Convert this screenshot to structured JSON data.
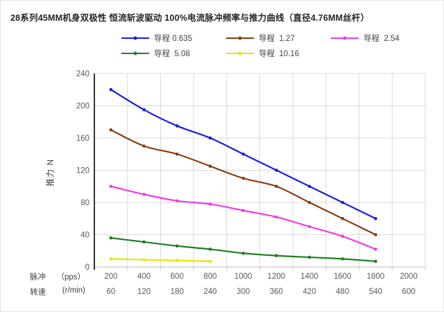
{
  "title": "28系列45MM机身双极性 恒流斩波驱动 100%电流脉冲频率与推力曲线（直径4.76MM丝杆）",
  "chart_data": {
    "type": "line",
    "title": "28系列45MM机身双极性 恒流斩波驱动 100%电流脉冲频率与推力曲线（直径4.76MM丝杆）",
    "ylabel": "推力 N",
    "ylim": [
      0,
      240
    ],
    "yticks": [
      0,
      40,
      80,
      120,
      160,
      200,
      240
    ],
    "grid": true,
    "legend_position": "top",
    "x_axis_rows": [
      {
        "name": "脉冲",
        "unit": "（pps）",
        "categories": [
          200,
          400,
          600,
          800,
          1000,
          1200,
          1400,
          1600,
          1800,
          2000
        ]
      },
      {
        "name": "转速",
        "unit": "(r/min)",
        "categories": [
          60,
          120,
          180,
          240,
          300,
          360,
          420,
          480,
          540,
          600
        ]
      }
    ],
    "series": [
      {
        "name": "导程 0.635",
        "color": "#1b1be6",
        "values": [
          220,
          195,
          175,
          160,
          140,
          120,
          100,
          80,
          60
        ]
      },
      {
        "name": "导程  1.27",
        "color": "#8b3d0e",
        "values": [
          170,
          150,
          140,
          125,
          110,
          100,
          80,
          60,
          40
        ]
      },
      {
        "name": "导程  2.54",
        "color": "#f23be8",
        "values": [
          100,
          90,
          82,
          78,
          70,
          62,
          50,
          38,
          22
        ]
      },
      {
        "name": "导程  5.08",
        "color": "#1f7d1f",
        "values": [
          36,
          31,
          26,
          22,
          17,
          14,
          12,
          10,
          7
        ]
      },
      {
        "name": "导程  10.16",
        "color": "#ede400",
        "values": [
          10,
          9,
          8,
          7
        ]
      }
    ],
    "colors": {
      "gridline": "#d9d9d9",
      "y_axis": "#000000",
      "x_axis": "#bfbfbf",
      "tick_label": "#595959",
      "title_text": "#262626"
    }
  }
}
